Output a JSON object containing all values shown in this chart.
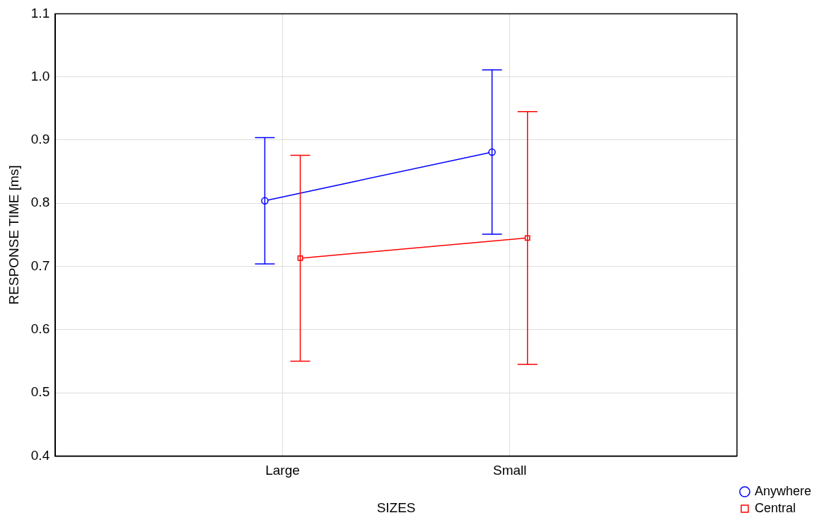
{
  "chart_data": {
    "type": "line",
    "xlabel": "SIZES",
    "ylabel": "RESPONSE TIME [ms]",
    "categories": [
      "Large",
      "Small"
    ],
    "series": [
      {
        "name": "Anywhere",
        "color": "#0000ff",
        "values": [
          0.804,
          0.881
        ],
        "errors": [
          0.1,
          0.13
        ],
        "marker": "circle"
      },
      {
        "name": "Central",
        "color": "#ff0000",
        "values": [
          0.713,
          0.745
        ],
        "errors": [
          0.163,
          0.2
        ],
        "marker": "square"
      }
    ],
    "ylim": [
      0.4,
      1.1
    ],
    "yticks": [
      0.4,
      0.5,
      0.6,
      0.7,
      0.8,
      0.9,
      {
        "value": 1,
        "label": "1.0"
      },
      1.1
    ],
    "grid": true,
    "legend": "bottom right",
    "line_style": "solid"
  }
}
